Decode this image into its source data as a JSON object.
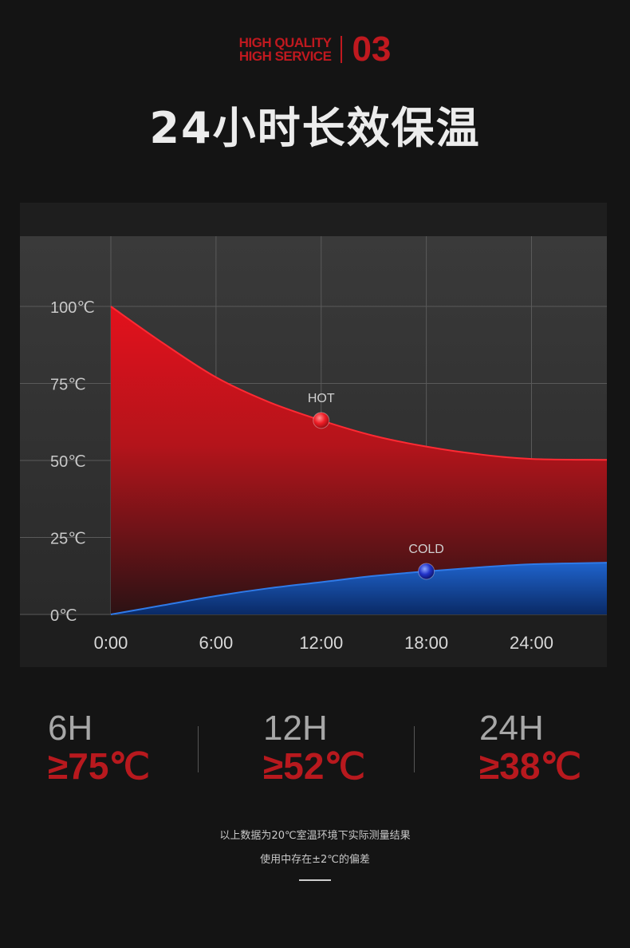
{
  "header": {
    "badge_line1": "HIGH QUALITY",
    "badge_line2": "HIGH SERVICE",
    "badge_number": "03",
    "title": "24小时长效保温"
  },
  "chart_data": {
    "type": "area",
    "x": [
      "0:00",
      "6:00",
      "12:00",
      "18:00",
      "24:00"
    ],
    "x_hours": [
      0,
      6,
      12,
      18,
      24,
      28.3
    ],
    "ylim": [
      0,
      100
    ],
    "xlim": [
      0,
      28.3
    ],
    "y_ticks": [
      "100℃",
      "75℃",
      "50℃",
      "25℃",
      "0℃"
    ],
    "grid": true,
    "series": [
      {
        "name": "HOT",
        "color": "#e0141e",
        "values_at_hours": [
          [
            0,
            100
          ],
          [
            3,
            88
          ],
          [
            6,
            77
          ],
          [
            9,
            69
          ],
          [
            12,
            63
          ],
          [
            15,
            58
          ],
          [
            18,
            54.5
          ],
          [
            21,
            52
          ],
          [
            24,
            50.5
          ],
          [
            28.3,
            50.2
          ]
        ],
        "marker": {
          "hour": 12,
          "value": 63,
          "label": "HOT"
        }
      },
      {
        "name": "COLD",
        "color": "#1f5fc4",
        "values_at_hours": [
          [
            0,
            0
          ],
          [
            3,
            3
          ],
          [
            6,
            6
          ],
          [
            9,
            8.5
          ],
          [
            12,
            10.5
          ],
          [
            15,
            12.5
          ],
          [
            18,
            14
          ],
          [
            21,
            15.3
          ],
          [
            24,
            16.3
          ],
          [
            28.3,
            16.8
          ]
        ],
        "marker": {
          "hour": 18,
          "value": 14,
          "label": "COLD"
        }
      }
    ]
  },
  "stats": [
    {
      "hours": "6H",
      "temp": "≥75℃"
    },
    {
      "hours": "12H",
      "temp": "≥52℃"
    },
    {
      "hours": "24H",
      "temp": "≥38℃"
    }
  ],
  "notes": {
    "line1": "以上数据为20℃室温环境下实际测量结果",
    "line2": "使用中存在±2℃的偏差"
  }
}
